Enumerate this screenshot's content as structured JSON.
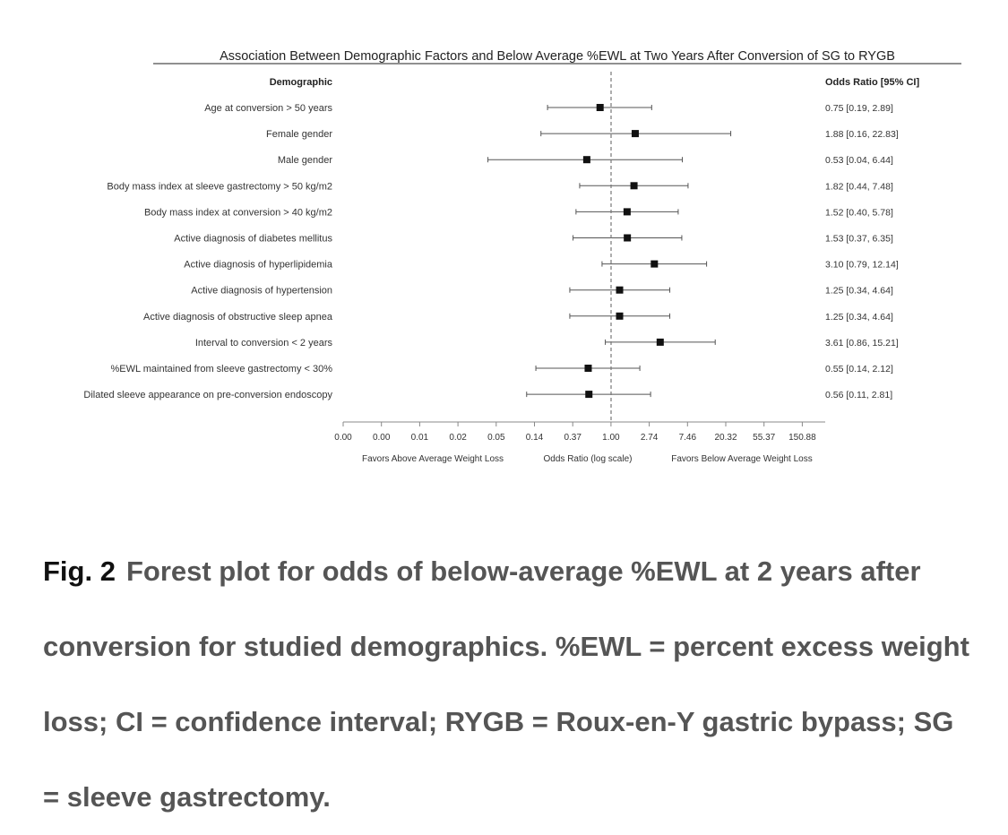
{
  "chart_data": {
    "type": "forest",
    "title": "Association Between Demographic Factors and Below Average %EWL at Two Years After Conversion of SG to RYGB",
    "label_column_header": "Demographic",
    "value_column_header": "Odds Ratio [95% CI]",
    "x_scale": "log",
    "reference_line": 1.0,
    "xlim": [
      0.001,
      200
    ],
    "x_tick_labels": [
      "0.00",
      "0.00",
      "0.01",
      "0.02",
      "0.05",
      "0.14",
      "0.37",
      "1.00",
      "2.74",
      "7.46",
      "20.32",
      "55.37",
      "150.88"
    ],
    "x_left_label": "Favors Above Average Weight Loss",
    "x_center_label": "Odds Ratio (log scale)",
    "x_right_label": "Favors Below Average Weight Loss",
    "rows": [
      {
        "label": "Age at conversion > 50 years",
        "or": 0.75,
        "lower": 0.19,
        "upper": 2.89,
        "text": "0.75 [0.19, 2.89]"
      },
      {
        "label": "Female gender",
        "or": 1.88,
        "lower": 0.16,
        "upper": 22.83,
        "text": "1.88 [0.16, 22.83]"
      },
      {
        "label": "Male gender",
        "or": 0.53,
        "lower": 0.04,
        "upper": 6.44,
        "text": "0.53 [0.04, 6.44]"
      },
      {
        "label": "Body mass index at sleeve gastrectomy  > 50 kg/m2",
        "or": 1.82,
        "lower": 0.44,
        "upper": 7.48,
        "text": "1.82 [0.44, 7.48]"
      },
      {
        "label": "Body mass index at conversion  > 40 kg/m2",
        "or": 1.52,
        "lower": 0.4,
        "upper": 5.78,
        "text": "1.52 [0.40, 5.78]"
      },
      {
        "label": "Active diagnosis of diabetes mellitus",
        "or": 1.53,
        "lower": 0.37,
        "upper": 6.35,
        "text": "1.53 [0.37, 6.35]"
      },
      {
        "label": "Active diagnosis of hyperlipidemia",
        "or": 3.1,
        "lower": 0.79,
        "upper": 12.14,
        "text": "3.10 [0.79, 12.14]"
      },
      {
        "label": "Active diagnosis of hypertension",
        "or": 1.25,
        "lower": 0.34,
        "upper": 4.64,
        "text": "1.25 [0.34, 4.64]"
      },
      {
        "label": "Active diagnosis of obstructive sleep apnea",
        "or": 1.25,
        "lower": 0.34,
        "upper": 4.64,
        "text": "1.25 [0.34, 4.64]"
      },
      {
        "label": "Interval to conversion < 2 years",
        "or": 3.61,
        "lower": 0.86,
        "upper": 15.21,
        "text": "3.61 [0.86, 15.21]"
      },
      {
        "label": "%EWL maintained from sleeve gastrectomy < 30%",
        "or": 0.55,
        "lower": 0.14,
        "upper": 2.12,
        "text": "0.55 [0.14, 2.12]"
      },
      {
        "label": "Dilated sleeve appearance on pre-conversion endoscopy",
        "or": 0.56,
        "lower": 0.11,
        "upper": 2.81,
        "text": "0.56 [0.11, 2.81]"
      }
    ],
    "colors": {
      "marker": "#111111",
      "ci_line": "#555555",
      "reference_line": "#777777",
      "axis": "#888888"
    }
  },
  "caption": {
    "label": "Fig. 2",
    "text": "Forest plot for odds of below-average %EWL at 2 years after conversion for studied demographics. %EWL = percent excess weight loss; CI = confidence interval; RYGB = Roux-en-Y gastric bypass; SG = sleeve gastrectomy."
  }
}
